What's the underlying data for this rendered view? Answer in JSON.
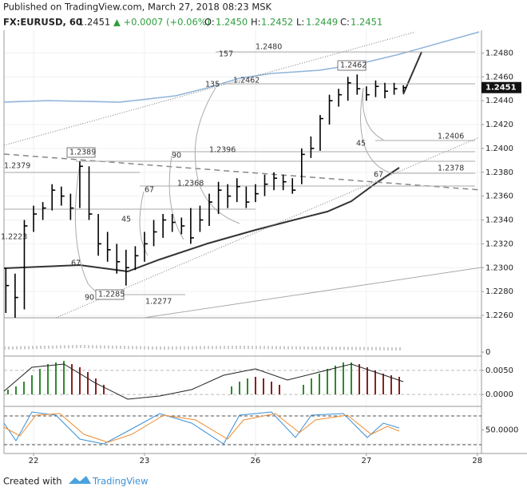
{
  "chart_data": {
    "type": "hlc",
    "title": "Published on TradingView.com, March 27, 2018 08:23 MSK",
    "symbol": "FX:EURUSD, 60",
    "quote": {
      "last": "1.2451",
      "change": "▲ +0.0007 (+0.06%)",
      "ohlc": [
        [
          "O:",
          "1.2450"
        ],
        [
          "H:",
          "1.2452"
        ],
        [
          "L:",
          "1.2449"
        ],
        [
          "C:",
          "1.2451"
        ]
      ]
    },
    "color": "#000000",
    "grid": true,
    "x": [
      -6,
      -4,
      -2,
      0,
      2,
      4,
      6,
      8,
      10,
      12,
      14,
      16,
      18,
      20,
      22,
      24,
      26,
      28,
      30,
      32,
      34,
      36,
      38,
      40,
      42,
      44,
      46,
      48,
      50,
      52,
      54,
      56,
      58,
      60,
      62,
      64,
      66,
      68,
      70,
      72,
      74,
      76,
      78,
      80
    ],
    "high": [
      1.23,
      1.2295,
      1.234,
      1.2352,
      1.2355,
      1.237,
      1.2368,
      1.2362,
      1.2389,
      1.2385,
      1.2345,
      1.233,
      1.232,
      1.2315,
      1.2318,
      1.233,
      1.234,
      1.2345,
      1.2345,
      1.2342,
      1.235,
      1.2352,
      1.2362,
      1.2372,
      1.237,
      1.2375,
      1.2368,
      1.237,
      1.2378,
      1.238,
      1.2378,
      1.2375,
      1.24,
      1.241,
      1.2428,
      1.2445,
      1.245,
      1.246,
      1.2462,
      1.2452,
      1.2457,
      1.2455,
      1.2455,
      1.2453
    ],
    "low": [
      1.2262,
      1.2258,
      1.2265,
      1.233,
      1.234,
      1.2348,
      1.2352,
      1.234,
      1.235,
      1.234,
      1.231,
      1.2305,
      1.2295,
      1.2285,
      1.2298,
      1.2305,
      1.2318,
      1.2325,
      1.233,
      1.2328,
      1.232,
      1.233,
      1.2335,
      1.2345,
      1.235,
      1.2355,
      1.235,
      1.2355,
      1.236,
      1.2365,
      1.2365,
      1.2362,
      1.237,
      1.2392,
      1.2398,
      1.242,
      1.2435,
      1.244,
      1.2445,
      1.244,
      1.2443,
      1.2442,
      1.2445,
      1.2447
    ],
    "close": [
      1.2285,
      1.2275,
      1.2335,
      1.2345,
      1.235,
      1.2365,
      1.236,
      1.235,
      1.2385,
      1.2345,
      1.232,
      1.2315,
      1.2305,
      1.23,
      1.231,
      1.232,
      1.233,
      1.234,
      1.2338,
      1.2335,
      1.2325,
      1.234,
      1.2355,
      1.2365,
      1.236,
      1.2368,
      1.2355,
      1.2362,
      1.237,
      1.2375,
      1.2372,
      1.2365,
      1.2395,
      1.24,
      1.2425,
      1.244,
      1.2445,
      1.2455,
      1.245,
      1.2445,
      1.2452,
      1.2448,
      1.245,
      1.2451
    ],
    "last_label": "1.2451",
    "xlim": [
      -6.4,
      96.9
    ],
    "xticks": [
      {
        "value": 0,
        "label": "22"
      },
      {
        "value": 24,
        "label": "23"
      },
      {
        "value": 48,
        "label": "26"
      },
      {
        "value": 72,
        "label": "27"
      },
      {
        "value": 96,
        "label": "28"
      }
    ],
    "ylim": [
      1.2258,
      1.2499
    ],
    "yticks": [
      {
        "value": 1.226,
        "label": "1.2260"
      },
      {
        "value": 1.228,
        "label": "1.2280"
      },
      {
        "value": 1.23,
        "label": "1.2300"
      },
      {
        "value": 1.232,
        "label": "1.2320"
      },
      {
        "value": 1.234,
        "label": "1.2340"
      },
      {
        "value": 1.236,
        "label": "1.2360"
      },
      {
        "value": 1.238,
        "label": "1.2380"
      },
      {
        "value": 1.24,
        "label": "1.2400"
      },
      {
        "value": 1.242,
        "label": "1.2420"
      },
      {
        "value": 1.244,
        "label": "1.2440"
      },
      {
        "value": 1.246,
        "label": "1.2460"
      },
      {
        "value": 1.248,
        "label": "1.2480"
      }
    ],
    "volume_yticks": [
      0
    ],
    "macd_ylim": [
      -0.0023,
      0.0078
    ],
    "macd_yticks": [
      {
        "value": 0.005,
        "label": "0.0050"
      },
      {
        "value": 0,
        "label": "0.0000"
      }
    ],
    "stoch_ylim": [
      0,
      100
    ],
    "stoch_yticks": [
      {
        "value": 50,
        "label": "50.0000"
      }
    ],
    "stoch_levels": [
      20,
      80
    ],
    "annotations": [
      "157",
      "1.2480",
      "135",
      "1.2462",
      "1.2462",
      "1.2396",
      "90",
      "1.2389",
      "1.2379",
      "1.2368",
      "67",
      "45",
      "1.2223",
      "67",
      "90",
      "1.2285",
      "1.2277",
      "1.2406",
      "45",
      "1.2378",
      "67"
    ],
    "footer": {
      "text": "Created with",
      "brand": "TradingView"
    }
  }
}
